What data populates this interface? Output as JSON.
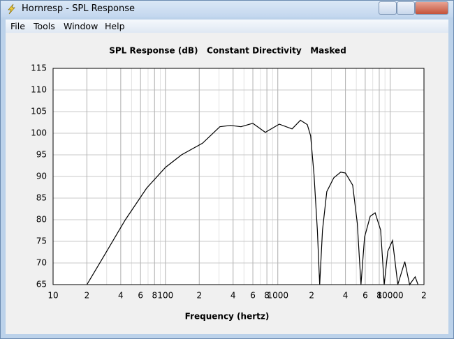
{
  "window": {
    "title": "Hornresp - SPL Response"
  },
  "menu": [
    "File",
    "Tools",
    "Window",
    "Help"
  ],
  "chart_data": {
    "type": "line",
    "title": "SPL Response (dB)   Constant Directivity   Masked",
    "xlabel": "Frequency (hertz)",
    "xscale": "log",
    "grid": true,
    "minor_grid": true,
    "xlim": [
      10,
      20000
    ],
    "ylim": [
      65,
      115
    ],
    "xticks": [
      10,
      {
        "value": 20,
        "label": "2"
      },
      {
        "value": 40,
        "label": "4"
      },
      {
        "value": 60,
        "label": "6"
      },
      {
        "value": 80,
        "label": "8"
      },
      100,
      {
        "value": 200,
        "label": "2"
      },
      {
        "value": 400,
        "label": "4"
      },
      {
        "value": 600,
        "label": "6"
      },
      {
        "value": 800,
        "label": "8"
      },
      1000,
      {
        "value": 2000,
        "label": "2"
      },
      {
        "value": 4000,
        "label": "4"
      },
      {
        "value": 6000,
        "label": "6"
      },
      {
        "value": 8000,
        "label": "8"
      },
      10000,
      {
        "value": 20000,
        "label": "2"
      }
    ],
    "yticks": [
      65,
      70,
      75,
      80,
      85,
      90,
      95,
      100,
      105,
      110,
      115
    ],
    "x": [
      20,
      28.8,
      44,
      68,
      100,
      139,
      214,
      305,
      380,
      470,
      599,
      775,
      1030,
      1340,
      1590,
      1830,
      1960,
      2100,
      2250,
      2360,
      2500,
      2730,
      3150,
      3630,
      4000,
      4640,
      5100,
      5500,
      5920,
      6650,
      7350,
      8230,
      8850,
      9530,
      10500,
      11700,
      13500,
      14900,
      16700,
      17700
    ],
    "series": [
      {
        "color": "#000000",
        "values": [
          65,
          71.9,
          80,
          87.3,
          92.1,
          95,
          97.7,
          101.5,
          101.8,
          101.5,
          102.3,
          100.2,
          102.1,
          101,
          103,
          102,
          99.4,
          90.5,
          77.6,
          65,
          77.6,
          86.5,
          89.7,
          91,
          90.8,
          88,
          79.2,
          65,
          76,
          80.8,
          81.6,
          77.6,
          65,
          72.7,
          75.2,
          65,
          70.3,
          65,
          66.8,
          65
        ]
      }
    ]
  }
}
